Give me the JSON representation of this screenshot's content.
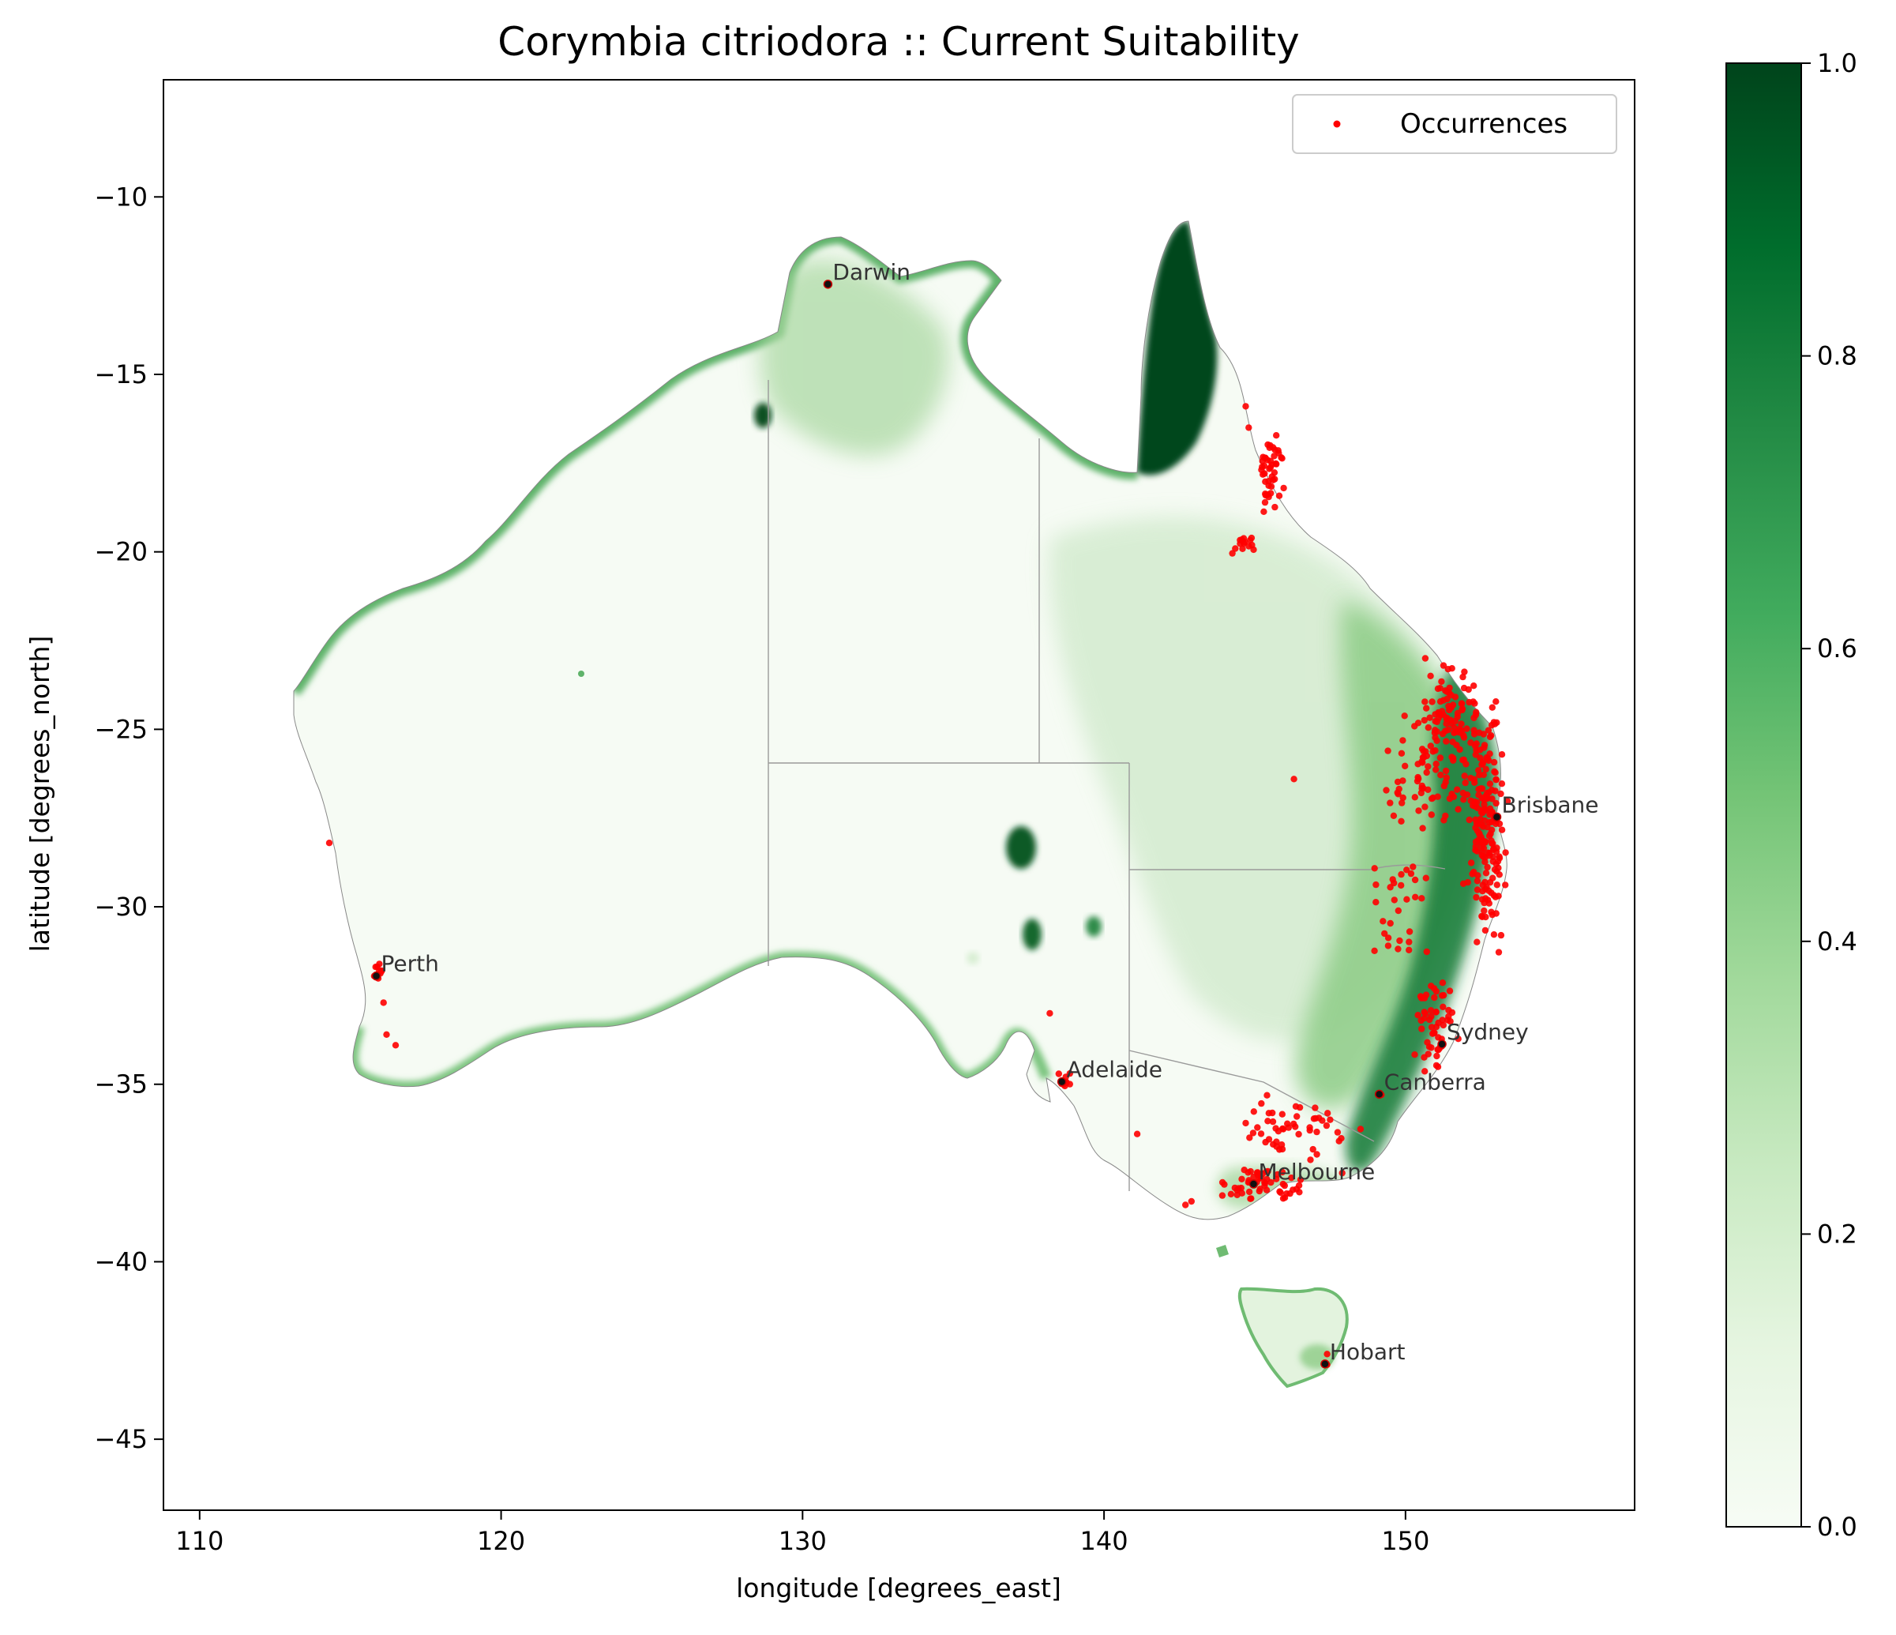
{
  "chart_data": {
    "type": "map",
    "title": "Corymbia citriodora :: Current Suitability",
    "xlabel": "longitude [degrees_east]",
    "ylabel": "latitude [degrees_north]",
    "xlim": [
      108.8,
      157.6
    ],
    "ylim": [
      -47.0,
      -6.7
    ],
    "xticks": [
      110,
      120,
      130,
      140,
      150
    ],
    "xtick_labels": [
      "110",
      "120",
      "130",
      "140",
      "150"
    ],
    "yticks": [
      -10,
      -15,
      -20,
      -25,
      -30,
      -35,
      -40,
      -45
    ],
    "ytick_labels": [
      "−10",
      "−15",
      "−20",
      "−25",
      "−30",
      "−35",
      "−40",
      "−45"
    ],
    "colorbar": {
      "colormap": "Greens",
      "range": [
        0.0,
        1.0
      ],
      "ticks": [
        0.0,
        0.2,
        0.4,
        0.6,
        0.8,
        1.0
      ],
      "tick_labels": [
        "0.0",
        "0.2",
        "0.4",
        "0.6",
        "0.8",
        "1.0"
      ],
      "colors": [
        "#f7fcf5",
        "#e5f5e0",
        "#c7e9c0",
        "#a1d99b",
        "#74c476",
        "#41ab5d",
        "#238b45",
        "#006d2c",
        "#00441b"
      ]
    },
    "legend": {
      "label": "Occurrences",
      "placement": "upper right",
      "marker_color": "#ff0000"
    },
    "cities": [
      {
        "name": "Darwin",
        "lon": 130.84,
        "lat": -12.46
      },
      {
        "name": "Brisbane",
        "lon": 153.03,
        "lat": -27.47
      },
      {
        "name": "Perth",
        "lon": 115.86,
        "lat": -31.95
      },
      {
        "name": "Sydney",
        "lon": 151.21,
        "lat": -33.87
      },
      {
        "name": "Adelaide",
        "lon": 138.6,
        "lat": -34.93
      },
      {
        "name": "Canberra",
        "lon": 149.13,
        "lat": -35.28
      },
      {
        "name": "Melbourne",
        "lon": 144.96,
        "lat": -37.81
      },
      {
        "name": "Hobart",
        "lon": 147.33,
        "lat": -42.88
      }
    ],
    "occurrence_clusters": [
      {
        "lon": 152.7,
        "lat": -28.0,
        "spread": [
          0.6,
          2.6
        ],
        "count": 170
      },
      {
        "lon": 151.6,
        "lat": -24.8,
        "spread": [
          1.3,
          1.4
        ],
        "count": 110
      },
      {
        "lon": 150.5,
        "lat": -26.6,
        "spread": [
          1.6,
          1.3
        ],
        "count": 60
      },
      {
        "lon": 151.0,
        "lat": -33.4,
        "spread": [
          0.6,
          1.3
        ],
        "count": 55
      },
      {
        "lon": 145.5,
        "lat": -17.7,
        "spread": [
          0.4,
          1.0
        ],
        "count": 45
      },
      {
        "lon": 144.6,
        "lat": -19.8,
        "spread": [
          0.6,
          0.3
        ],
        "count": 14
      },
      {
        "lon": 145.3,
        "lat": -37.8,
        "spread": [
          1.1,
          0.5
        ],
        "count": 55
      },
      {
        "lon": 146.5,
        "lat": -36.2,
        "spread": [
          1.8,
          1.0
        ],
        "count": 50
      },
      {
        "lon": 149.8,
        "lat": -30.2,
        "spread": [
          1.2,
          1.8
        ],
        "count": 30
      },
      {
        "lon": 138.7,
        "lat": -34.9,
        "spread": [
          0.2,
          0.25
        ],
        "count": 12
      },
      {
        "lon": 115.95,
        "lat": -31.9,
        "spread": [
          0.2,
          0.3
        ],
        "count": 10
      }
    ],
    "occurrence_points": [
      [
        114.3,
        -28.2
      ],
      [
        116.2,
        -33.6
      ],
      [
        116.5,
        -33.9
      ],
      [
        116.1,
        -32.7
      ],
      [
        138.2,
        -33.0
      ],
      [
        141.1,
        -36.4
      ],
      [
        142.7,
        -38.4
      ],
      [
        142.9,
        -38.3
      ],
      [
        146.3,
        -26.4
      ],
      [
        147.5,
        -36.0
      ],
      [
        147.9,
        -37.5
      ],
      [
        144.7,
        -15.9
      ],
      [
        144.8,
        -16.5
      ],
      [
        149.2,
        -35.3
      ],
      [
        147.4,
        -42.9
      ],
      [
        147.4,
        -42.6
      ]
    ]
  }
}
